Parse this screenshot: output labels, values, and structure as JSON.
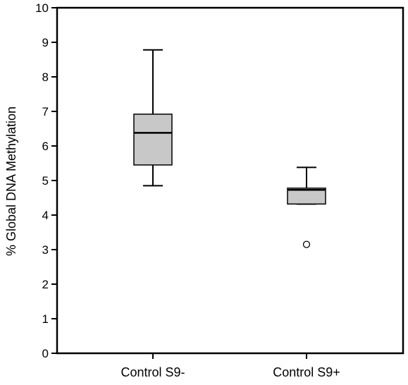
{
  "chart_data": {
    "type": "boxplot",
    "title": "",
    "xlabel": "",
    "ylabel": "% Global DNA Methylation",
    "ylim": [
      0,
      10
    ],
    "yticks": [
      0,
      1,
      2,
      3,
      4,
      5,
      6,
      7,
      8,
      9,
      10
    ],
    "grid": false,
    "box_color": "#c8c8c8",
    "categories": [
      "Control S9-",
      "Control S9+"
    ],
    "boxes": [
      {
        "category": "Control S9-",
        "whisker_low": 4.85,
        "q1": 5.45,
        "median": 6.38,
        "q3": 6.92,
        "whisker_high": 8.78,
        "outliers": []
      },
      {
        "category": "Control S9+",
        "whisker_low": 4.32,
        "q1": 4.32,
        "median": 4.73,
        "q3": 4.78,
        "whisker_high": 5.38,
        "outliers": [
          3.15
        ]
      }
    ]
  }
}
